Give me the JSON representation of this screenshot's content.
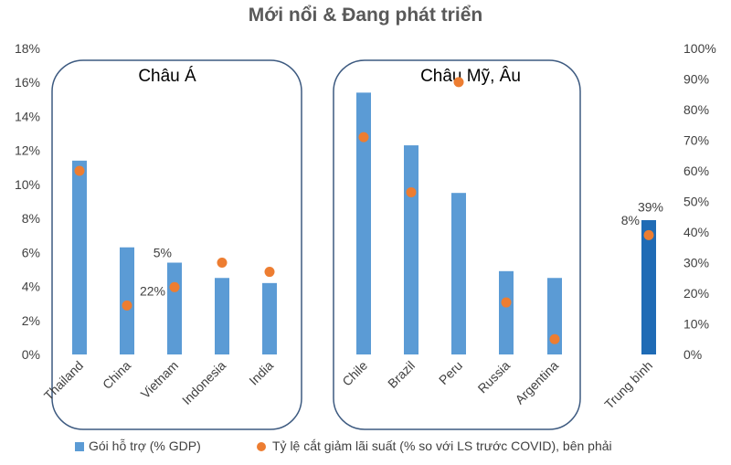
{
  "chart_data": {
    "type": "bar",
    "title": "Mới nổi & Đang phát triển",
    "categories": [
      "Thailand",
      "China",
      "Vietnam",
      "Indonesia",
      "India",
      "Chile",
      "Brazil",
      "Peru",
      "Russia",
      "Argentina",
      "Trung bình"
    ],
    "groups": [
      {
        "label": "Châu Á",
        "members": [
          "Thailand",
          "China",
          "Vietnam",
          "Indonesia",
          "India"
        ]
      },
      {
        "label": "Châu Mỹ, Âu",
        "members": [
          "Chile",
          "Brazil",
          "Peru",
          "Russia",
          "Argentina"
        ]
      }
    ],
    "series": [
      {
        "name": "Gói hỗ trợ (% GDP)",
        "type": "bar",
        "axis": "left",
        "values": [
          11.4,
          6.3,
          5.4,
          4.5,
          4.2,
          15.4,
          12.3,
          9.5,
          4.9,
          4.5,
          7.9
        ]
      },
      {
        "name": "Tỷ lệ cắt giảm lãi suất (% so với LS trước COVID), bên phải",
        "type": "scatter",
        "axis": "right",
        "values": [
          60,
          16,
          22,
          30,
          27,
          71,
          53,
          89,
          17,
          5,
          39
        ]
      }
    ],
    "left_axis": {
      "ylim": [
        0,
        18
      ],
      "ticks": [
        "0%",
        "2%",
        "4%",
        "6%",
        "8%",
        "10%",
        "12%",
        "14%",
        "16%",
        "18%"
      ]
    },
    "right_axis": {
      "ylim": [
        0,
        100
      ],
      "ticks": [
        "0%",
        "10%",
        "20%",
        "30%",
        "40%",
        "50%",
        "60%",
        "70%",
        "80%",
        "90%",
        "100%"
      ]
    },
    "annotations": [
      {
        "category": "Vietnam",
        "series": "bar",
        "text": "5%"
      },
      {
        "category": "Vietnam",
        "series": "scatter",
        "text": "22%"
      },
      {
        "category": "Trung bình",
        "series": "scatter",
        "text": "39%"
      },
      {
        "category": "Trung bình",
        "series": "bar",
        "text": "8%"
      }
    ],
    "grid": false,
    "legend_position": "bottom",
    "colors": {
      "bar": "#5b9bd5",
      "bar_highlight": "#1f6bb5",
      "scatter": "#ed7d31",
      "group_box": "#3d5a80"
    }
  }
}
